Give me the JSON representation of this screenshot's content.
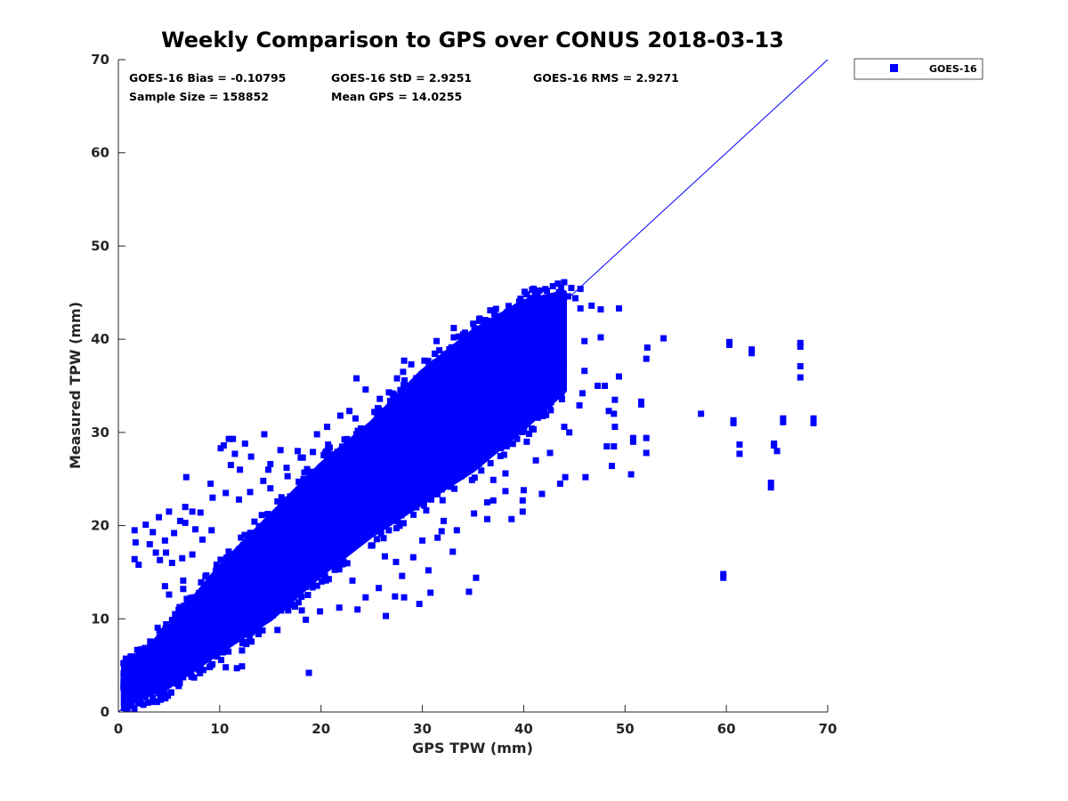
{
  "chart_data": {
    "type": "scatter",
    "title": "Weekly Comparison to GPS over CONUS 2018-03-13",
    "xlabel": "GPS TPW (mm)",
    "ylabel": "Measured TPW (mm)",
    "xlim": [
      0,
      70
    ],
    "ylim": [
      0,
      70
    ],
    "xticks": [
      "0",
      "10",
      "20",
      "30",
      "40",
      "50",
      "60",
      "70"
    ],
    "yticks": [
      "0",
      "10",
      "20",
      "30",
      "40",
      "50",
      "60",
      "70"
    ],
    "grid": false,
    "legend_position": "outside-top-right",
    "reference_line": {
      "label": "1:1 line",
      "x": [
        0,
        70
      ],
      "y": [
        0,
        70
      ]
    },
    "stats": {
      "bias": "GOES-16 Bias = -0.10795",
      "std": "GOES-16 StD = 2.9251",
      "rms": "GOES-16 RMS = 2.9271",
      "sample_size": "Sample Size = 158852",
      "mean_gps": "Mean GPS = 14.0255"
    },
    "series": [
      {
        "name": "GOES-16",
        "color": "#0000ff",
        "marker": "square",
        "sample_size": 158852,
        "outlier_points": [
          [
            45.6,
            43.3
          ],
          [
            46.7,
            43.6
          ],
          [
            47.6,
            43.2
          ],
          [
            49.4,
            43.3
          ],
          [
            46.0,
            39.8
          ],
          [
            47.6,
            40.2
          ],
          [
            52.2,
            39.1
          ],
          [
            52.1,
            37.9
          ],
          [
            53.8,
            40.1
          ],
          [
            60.3,
            39.7
          ],
          [
            60.3,
            39.4
          ],
          [
            62.5,
            38.9
          ],
          [
            62.5,
            38.5
          ],
          [
            67.3,
            39.6
          ],
          [
            67.3,
            39.2
          ],
          [
            67.3,
            37.1
          ],
          [
            67.3,
            35.9
          ],
          [
            46.0,
            36.6
          ],
          [
            47.3,
            35.0
          ],
          [
            48.0,
            35.0
          ],
          [
            49.4,
            36.0
          ],
          [
            49.0,
            33.5
          ],
          [
            51.6,
            33.3
          ],
          [
            51.6,
            33.0
          ],
          [
            57.5,
            32.0
          ],
          [
            60.7,
            31.3
          ],
          [
            60.7,
            31.0
          ],
          [
            65.6,
            31.5
          ],
          [
            65.6,
            31.1
          ],
          [
            68.6,
            31.5
          ],
          [
            68.6,
            31.0
          ],
          [
            48.4,
            32.3
          ],
          [
            48.9,
            32.0
          ],
          [
            49.0,
            30.6
          ],
          [
            50.8,
            29.4
          ],
          [
            50.8,
            29.0
          ],
          [
            52.1,
            29.4
          ],
          [
            61.3,
            28.7
          ],
          [
            61.3,
            27.7
          ],
          [
            64.7,
            28.8
          ],
          [
            64.7,
            28.6
          ],
          [
            65.0,
            28.0
          ],
          [
            48.2,
            28.5
          ],
          [
            48.9,
            28.5
          ],
          [
            48.7,
            26.4
          ],
          [
            52.1,
            27.8
          ],
          [
            50.6,
            25.5
          ],
          [
            46.1,
            25.2
          ],
          [
            43.6,
            24.5
          ],
          [
            44.1,
            25.2
          ],
          [
            64.4,
            24.6
          ],
          [
            64.4,
            24.1
          ],
          [
            59.7,
            14.8
          ],
          [
            59.7,
            14.4
          ],
          [
            40.3,
            29.0
          ],
          [
            41.2,
            27.0
          ],
          [
            42.6,
            27.8
          ],
          [
            39.9,
            22.7
          ],
          [
            39.9,
            21.5
          ],
          [
            38.8,
            20.7
          ],
          [
            41.8,
            23.4
          ],
          [
            40.0,
            23.8
          ],
          [
            34.6,
            12.9
          ],
          [
            35.3,
            14.4
          ],
          [
            42.0,
            32.8
          ],
          [
            44.0,
            30.6
          ],
          [
            44.5,
            30.0
          ],
          [
            43.2,
            34.5
          ],
          [
            45.5,
            32.9
          ],
          [
            45.8,
            34.2
          ],
          [
            1.6,
            19.5
          ],
          [
            1.7,
            18.2
          ],
          [
            1.6,
            16.4
          ],
          [
            2.0,
            15.8
          ],
          [
            2.7,
            20.1
          ],
          [
            3.4,
            19.3
          ],
          [
            3.1,
            18.0
          ],
          [
            3.7,
            17.1
          ],
          [
            4.1,
            16.3
          ],
          [
            4.0,
            20.9
          ],
          [
            5.0,
            21.5
          ],
          [
            4.6,
            18.4
          ],
          [
            4.7,
            17.1
          ],
          [
            5.5,
            19.2
          ],
          [
            5.3,
            16.0
          ],
          [
            6.1,
            20.5
          ],
          [
            6.3,
            16.5
          ],
          [
            6.6,
            20.3
          ],
          [
            6.6,
            22.0
          ],
          [
            7.3,
            21.5
          ],
          [
            7.6,
            19.6
          ],
          [
            7.3,
            16.9
          ],
          [
            8.1,
            21.4
          ],
          [
            8.3,
            18.5
          ],
          [
            9.2,
            19.5
          ],
          [
            9.1,
            24.5
          ],
          [
            9.3,
            23.0
          ],
          [
            10.6,
            23.5
          ],
          [
            10.1,
            28.3
          ],
          [
            10.4,
            28.6
          ],
          [
            10.9,
            29.3
          ],
          [
            11.3,
            29.3
          ],
          [
            11.5,
            27.7
          ],
          [
            11.1,
            26.5
          ],
          [
            12.5,
            28.8
          ],
          [
            12.0,
            26.0
          ],
          [
            13.1,
            27.4
          ],
          [
            14.4,
            29.8
          ],
          [
            11.9,
            22.8
          ],
          [
            13.0,
            23.6
          ],
          [
            14.3,
            24.8
          ],
          [
            15.0,
            26.6
          ],
          [
            15.0,
            24.0
          ],
          [
            16.7,
            25.3
          ],
          [
            16.0,
            28.1
          ],
          [
            17.0,
            21.7
          ],
          [
            18.2,
            27.3
          ],
          [
            19.2,
            27.9
          ],
          [
            6.7,
            25.2
          ],
          [
            6.4,
            14.1
          ],
          [
            6.4,
            13.2
          ],
          [
            4.6,
            13.5
          ],
          [
            5.0,
            12.6
          ],
          [
            5.6,
            10.5
          ],
          [
            7.1,
            10.2
          ],
          [
            7.6,
            9.8
          ],
          [
            8.4,
            9.1
          ],
          [
            9.4,
            8.8
          ],
          [
            10.6,
            7.9
          ],
          [
            9.1,
            7.8
          ],
          [
            10.3,
            6.4
          ],
          [
            11.7,
            4.7
          ],
          [
            12.2,
            4.9
          ],
          [
            10.6,
            4.8
          ],
          [
            12.2,
            6.6
          ],
          [
            18.8,
            4.2
          ],
          [
            11.9,
            8.4
          ],
          [
            12.8,
            9.7
          ],
          [
            13.9,
            10.7
          ],
          [
            14.5,
            12.0
          ],
          [
            15.7,
            8.8
          ],
          [
            16.3,
            11.2
          ],
          [
            17.3,
            11.5
          ],
          [
            18.1,
            10.9
          ],
          [
            18.5,
            9.9
          ],
          [
            19.9,
            10.8
          ],
          [
            21.8,
            11.2
          ],
          [
            23.6,
            11.0
          ],
          [
            23.1,
            14.1
          ],
          [
            24.4,
            12.3
          ],
          [
            25.7,
            13.3
          ],
          [
            26.3,
            16.7
          ],
          [
            27.4,
            16.1
          ],
          [
            26.4,
            10.3
          ],
          [
            27.3,
            12.4
          ],
          [
            28.0,
            14.6
          ],
          [
            29.1,
            16.6
          ],
          [
            30.0,
            18.4
          ],
          [
            31.5,
            18.7
          ],
          [
            31.9,
            19.4
          ],
          [
            32.1,
            20.5
          ],
          [
            33.4,
            19.5
          ],
          [
            35.1,
            21.3
          ],
          [
            36.4,
            20.7
          ],
          [
            37.0,
            22.7
          ],
          [
            38.2,
            23.7
          ],
          [
            37.0,
            24.9
          ],
          [
            38.2,
            25.6
          ],
          [
            36.4,
            22.5
          ],
          [
            28.2,
            12.3
          ],
          [
            30.8,
            12.8
          ],
          [
            33.0,
            17.2
          ],
          [
            30.6,
            15.2
          ],
          [
            29.7,
            11.6
          ],
          [
            23.5,
            35.8
          ],
          [
            24.4,
            34.6
          ],
          [
            25.8,
            33.6
          ],
          [
            27.5,
            35.8
          ],
          [
            28.2,
            37.7
          ],
          [
            28.9,
            37.3
          ],
          [
            30.2,
            37.7
          ],
          [
            32.2,
            38.4
          ],
          [
            31.4,
            39.8
          ],
          [
            33.1,
            40.2
          ],
          [
            33.1,
            41.2
          ],
          [
            34.2,
            40.7
          ],
          [
            35.1,
            40.2
          ],
          [
            35.6,
            42.1
          ],
          [
            36.7,
            43.1
          ],
          [
            37.1,
            42.7
          ],
          [
            36.7,
            41.0
          ],
          [
            38.0,
            41.5
          ],
          [
            39.3,
            43.4
          ],
          [
            40.1,
            42.8
          ],
          [
            41.3,
            43.4
          ],
          [
            42.3,
            43.6
          ],
          [
            43.3,
            44.1
          ],
          [
            43.8,
            42.6
          ],
          [
            43.6,
            44.6
          ],
          [
            44.4,
            44.6
          ],
          [
            45.1,
            44.4
          ],
          [
            44.7,
            45.5
          ],
          [
            45.6,
            45.4
          ],
          [
            22.8,
            32.3
          ],
          [
            21.9,
            31.8
          ],
          [
            20.6,
            30.6
          ],
          [
            19.6,
            29.8
          ],
          [
            20.7,
            28.7
          ],
          [
            17.7,
            28.0
          ],
          [
            20.0,
            26.2
          ],
          [
            23.4,
            31.5
          ],
          [
            25.6,
            32.6
          ],
          [
            26.7,
            34.3
          ],
          [
            28.1,
            36.5
          ],
          [
            22.7,
            28.3
          ],
          [
            18.0,
            27.3
          ],
          [
            14.8,
            26.0
          ],
          [
            15.7,
            22.6
          ],
          [
            16.6,
            26.2
          ]
        ],
        "density_band": {
          "description": "dense cloud of points hugging the 1:1 line",
          "centerline": [
            [
              0.5,
              1.5
            ],
            [
              5,
              5.2
            ],
            [
              10,
              10.3
            ],
            [
              15,
              15.5
            ],
            [
              20,
              20.6
            ],
            [
              25,
              25.6
            ],
            [
              30,
              30.4
            ],
            [
              35,
              35.4
            ],
            [
              40,
              39.2
            ],
            [
              43,
              41.8
            ]
          ],
          "lower_edge": [
            [
              0.5,
              0.8
            ],
            [
              5,
              2.8
            ],
            [
              10,
              6.5
            ],
            [
              15,
              10.0
            ],
            [
              20,
              14.8
            ],
            [
              25,
              19.0
            ],
            [
              30,
              22.5
            ],
            [
              35,
              26.0
            ],
            [
              40,
              30.5
            ],
            [
              44,
              34.5
            ]
          ],
          "upper_edge": [
            [
              0.5,
              4.5
            ],
            [
              5,
              9.0
            ],
            [
              10,
              15.5
            ],
            [
              15,
              21.0
            ],
            [
              20,
              26.5
            ],
            [
              25,
              31.0
            ],
            [
              30,
              36.5
            ],
            [
              35,
              40.8
            ],
            [
              40,
              44.0
            ],
            [
              44,
              45.0
            ]
          ]
        }
      }
    ]
  }
}
